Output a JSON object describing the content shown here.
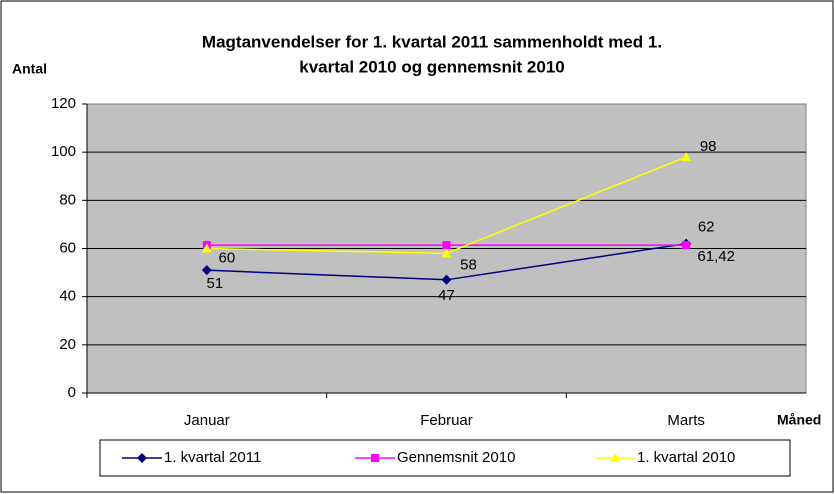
{
  "chart_data": {
    "type": "line",
    "title": [
      "Magtanvendelser for 1. kvartal 2011 sammenholdt med 1.",
      "kvartal 2010 og gennemsnit 2010"
    ],
    "y_label": "Antal",
    "x_label": "Måned",
    "categories": [
      "Januar",
      "Februar",
      "Marts"
    ],
    "series": [
      {
        "name": "1. kvartal 2011",
        "color": "#000080",
        "marker": "diamond",
        "values": [
          51,
          47,
          62
        ]
      },
      {
        "name": "Gennemsnit 2010",
        "color": "#ff00ff",
        "marker": "square",
        "values": [
          61.42,
          61.42,
          61.42
        ],
        "value_labels": [
          null,
          null,
          "61,42"
        ]
      },
      {
        "name": "1. kvartal 2010",
        "color": "#ffff00",
        "marker": "triangle",
        "values": [
          60,
          58,
          98
        ]
      }
    ],
    "ylim": [
      0,
      120
    ],
    "yticks": [
      0,
      20,
      40,
      60,
      80,
      100,
      120
    ],
    "grid": true,
    "legend": "bottom"
  }
}
